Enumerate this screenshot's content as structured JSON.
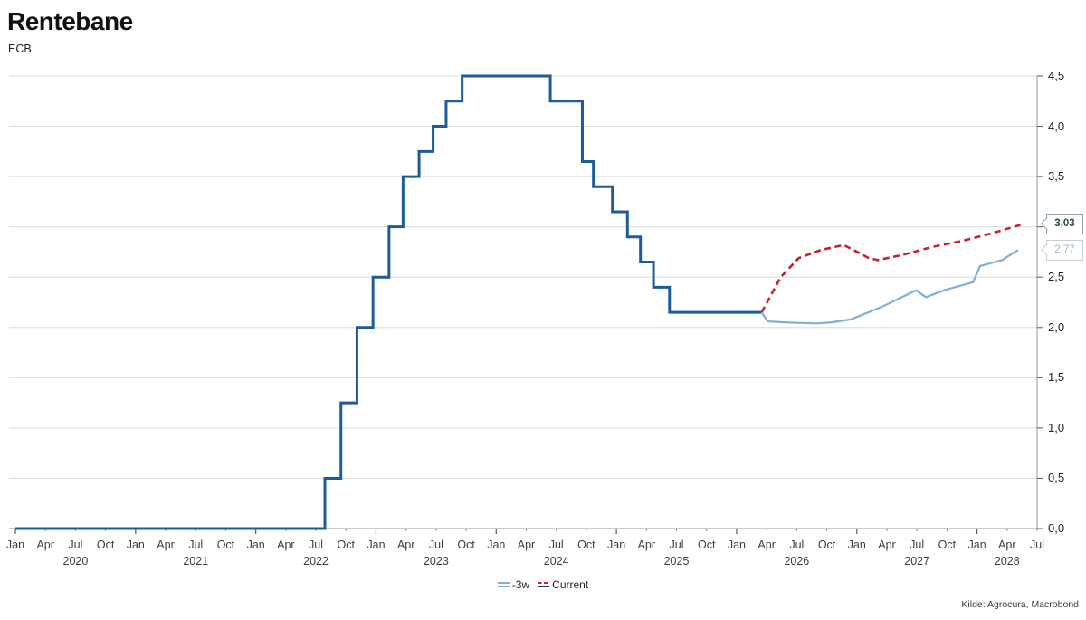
{
  "header": {
    "title": "Rentebane",
    "subtitle": "ECB"
  },
  "source": {
    "text": "Kilde: Agrocura, Macrobond"
  },
  "legend": {
    "position": "bottom-center",
    "items": [
      {
        "label": "-3w",
        "swatch": "double-light-blue-line",
        "color": "#7FAFD6"
      },
      {
        "label": "Current",
        "swatch": "red-dash-over-navy-solid",
        "dash_color": "#C9202F",
        "solid_color": "#17406E"
      }
    ]
  },
  "callouts": [
    {
      "label": "3,03",
      "value": 3.03,
      "series": "Current",
      "text_color": "#2E4B45",
      "border_color": "#8FA497"
    },
    {
      "label": "2,77",
      "value": 2.77,
      "series": "-3w",
      "text_color": "#93B9DB",
      "border_color": "#C9CfD4"
    }
  ],
  "axis_colors": {
    "grid": "#DCDCDC",
    "axis": "#9A9A9A",
    "tick": "#5a5a5a",
    "label": "#3d3d3d"
  },
  "chart_data": {
    "type": "line",
    "title": "Rentebane",
    "subtitle": "ECB",
    "xlabel": "",
    "ylabel": "",
    "ylim": [
      0,
      4.5
    ],
    "grid": "horizontal-on",
    "y_axis_side": "right",
    "decimal_separator": ",",
    "y_ticks": [
      "0,0",
      "0,5",
      "1,0",
      "1,5",
      "2,0",
      "2,5",
      "3,0",
      "3,5",
      "4,0",
      "4,5"
    ],
    "y_tick_values": [
      0,
      0.5,
      1.0,
      1.5,
      2.0,
      2.5,
      3.0,
      3.5,
      4.0,
      4.5
    ],
    "x_unit": "months_since_2020_01",
    "x_range_months": [
      0,
      102
    ],
    "x_range_labels": [
      "Jan 2020",
      "Jul 2028"
    ],
    "month_labels_cycle": [
      "Jan",
      "Apr",
      "Jul",
      "Oct"
    ],
    "years": [
      {
        "label": "2020",
        "anchor_month": 6
      },
      {
        "label": "2021",
        "anchor_month": 18
      },
      {
        "label": "2022",
        "anchor_month": 30
      },
      {
        "label": "2023",
        "anchor_month": 42
      },
      {
        "label": "2024",
        "anchor_month": 54
      },
      {
        "label": "2025",
        "anchor_month": 66
      },
      {
        "label": "2026",
        "anchor_month": 78
      },
      {
        "label": "2027",
        "anchor_month": 90
      },
      {
        "label": "2028",
        "anchor_month": 99
      }
    ],
    "series": [
      {
        "name": "Current (history, ECB policy rate)",
        "style": "step",
        "color": "#1E5C99",
        "width": 3,
        "end_month": 74.5,
        "end_date": "Mar 2026",
        "dates": [
          "Jan 2020",
          "Jul 2022",
          "Sep 2022",
          "Nov 2022",
          "Dec 2022",
          "Feb 2023",
          "Mar 2023",
          "May 2023",
          "Jun 2023",
          "Aug 2023",
          "Sep 2023",
          "Jun 2024",
          "Sep 2024",
          "Oct 2024",
          "Dec 2024",
          "Feb 2025",
          "Mar 2025",
          "Apr 2025",
          "Jun 2025"
        ],
        "points": [
          [
            0,
            0
          ],
          [
            30.9,
            0.5
          ],
          [
            32.5,
            1.25
          ],
          [
            34.1,
            2.0
          ],
          [
            35.7,
            2.5
          ],
          [
            37.3,
            3.0
          ],
          [
            38.7,
            3.5
          ],
          [
            40.3,
            3.75
          ],
          [
            41.7,
            4.0
          ],
          [
            43.0,
            4.25
          ],
          [
            44.6,
            4.5
          ],
          [
            53.4,
            4.25
          ],
          [
            56.6,
            3.65
          ],
          [
            57.7,
            3.4
          ],
          [
            59.6,
            3.15
          ],
          [
            61.1,
            2.9
          ],
          [
            62.4,
            2.65
          ],
          [
            63.7,
            2.4
          ],
          [
            65.3,
            2.15
          ]
        ]
      },
      {
        "name": "Current",
        "style": "dashed",
        "color": "#C9202F",
        "width": 2.6,
        "end_label": "3,03",
        "dates": [
          "Mar 2026",
          "May 2026",
          "Jul 2026",
          "Sep 2026",
          "Nov 2026",
          "Feb 2027",
          "Mar 2027",
          "May 2027",
          "Aug 2027",
          "Nov 2027",
          "Feb 2028",
          "May 2028"
        ],
        "points": [
          [
            74.5,
            2.15
          ],
          [
            76.4,
            2.5
          ],
          [
            78.2,
            2.69
          ],
          [
            80.4,
            2.77
          ],
          [
            82.7,
            2.82
          ],
          [
            85.2,
            2.69
          ],
          [
            86.1,
            2.67
          ],
          [
            88.5,
            2.72
          ],
          [
            91.5,
            2.8
          ],
          [
            94.5,
            2.86
          ],
          [
            97.6,
            2.94
          ],
          [
            100.7,
            3.03
          ]
        ]
      },
      {
        "name": "-3w",
        "style": "solid",
        "color": "#7FAFD6",
        "width": 2.2,
        "end_label": "2,77",
        "dates": [
          "Mar 2026",
          "Apr 2026",
          "Jun 2026",
          "Sep 2026",
          "Oct 2026",
          "Dec 2026",
          "Mar 2027",
          "May 2027",
          "Jun 2027",
          "Jul 2027",
          "Sep 2027",
          "Nov 2027",
          "Dec 2027",
          "Jan 2028",
          "Mar 2028",
          "Apr 2028"
        ],
        "points": [
          [
            74.5,
            2.15
          ],
          [
            75.1,
            2.06
          ],
          [
            77,
            2.05
          ],
          [
            80,
            2.04
          ],
          [
            81.4,
            2.05
          ],
          [
            83.4,
            2.08
          ],
          [
            86.4,
            2.2
          ],
          [
            89.1,
            2.33
          ],
          [
            89.9,
            2.37
          ],
          [
            90.9,
            2.3
          ],
          [
            92.7,
            2.37
          ],
          [
            94.9,
            2.43
          ],
          [
            95.6,
            2.45
          ],
          [
            96.3,
            2.61
          ],
          [
            98.5,
            2.67
          ],
          [
            100.1,
            2.77
          ]
        ]
      }
    ]
  }
}
